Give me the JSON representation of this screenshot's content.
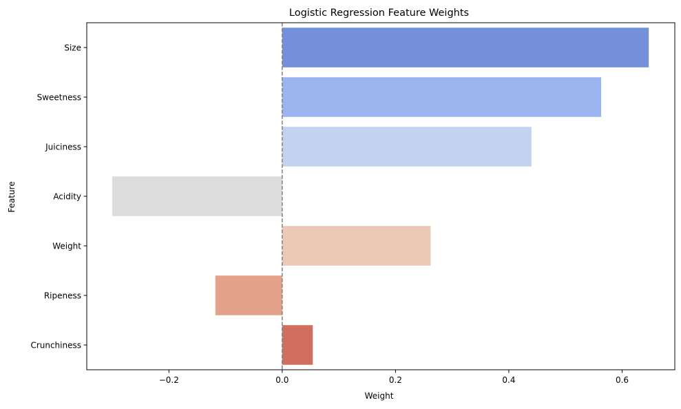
{
  "chart_data": {
    "type": "bar",
    "orientation": "horizontal",
    "title": "Logistic Regression Feature Weights",
    "xlabel": "Weight",
    "ylabel": "Feature",
    "categories": [
      "Size",
      "Sweetness",
      "Juiciness",
      "Acidity",
      "Weight",
      "Ripeness",
      "Crunchiness"
    ],
    "values": [
      0.647,
      0.563,
      0.44,
      -0.3,
      0.262,
      -0.118,
      0.054
    ],
    "bar_colors": [
      "#7590db",
      "#9bb5f0",
      "#c3d3ef",
      "#dcdcdc",
      "#ecc8b6",
      "#e5a28a",
      "#d06f60"
    ],
    "xlim": [
      -0.345,
      0.693
    ],
    "xticks": [
      -0.2,
      0.0,
      0.2,
      0.4,
      0.6
    ],
    "xtick_labels": [
      "−0.2",
      "0.0",
      "0.2",
      "0.4",
      "0.6"
    ],
    "reference_line": {
      "x": 0,
      "style": "dashed",
      "color": "#808080"
    },
    "grid": false,
    "legend": null
  }
}
